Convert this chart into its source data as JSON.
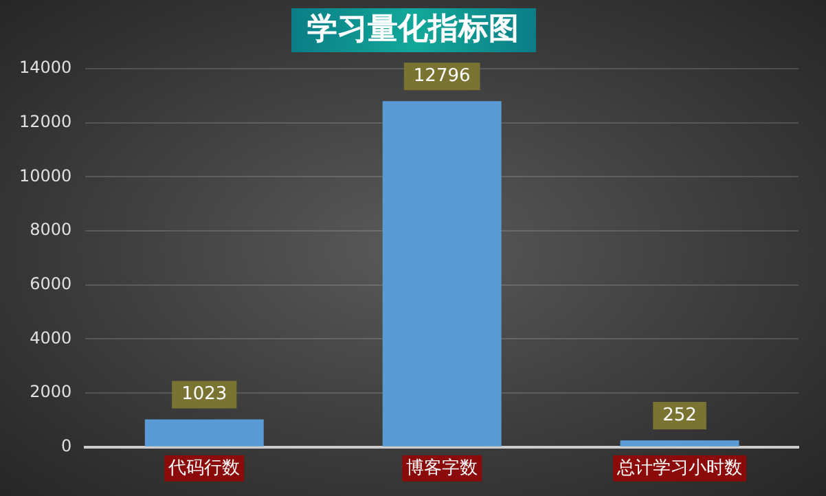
{
  "chart_data": {
    "type": "bar",
    "title": "学习量化指标图",
    "categories": [
      "代码行数",
      "博客字数",
      "总计学习小时数"
    ],
    "values": [
      1023,
      12796,
      252
    ],
    "color": "#5b9bd5",
    "ylim": [
      0,
      14000
    ],
    "yticks": [
      0,
      2000,
      4000,
      6000,
      8000,
      10000,
      12000,
      14000
    ],
    "grid": "y",
    "legend": false,
    "data_labels": true
  }
}
